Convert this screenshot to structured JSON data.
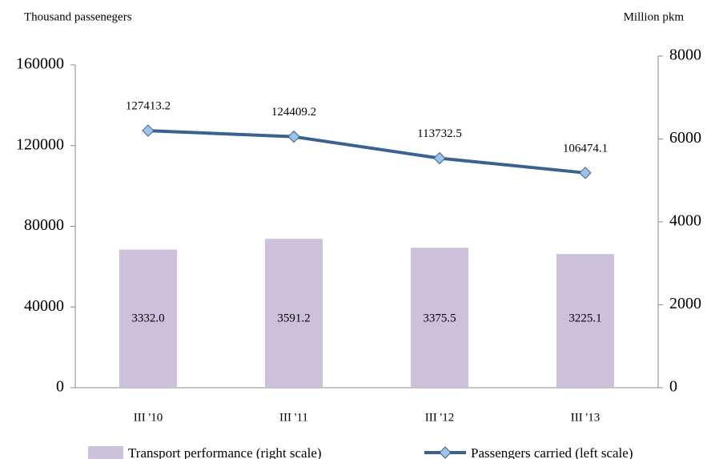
{
  "chart_data": {
    "type": "combo",
    "y_label": "Thousand passenegers",
    "y2_label": "Million pkm",
    "categories": [
      "III '10",
      "III '11",
      "III '12",
      "III '13"
    ],
    "series": [
      {
        "name": "Transport performance (right scale)",
        "type": "bar",
        "axis": "y2",
        "color": "#ccc0da",
        "values": [
          3332.0,
          3591.2,
          3375.5,
          3225.1
        ],
        "value_labels": [
          "3332.0",
          "3591.2",
          "3375.5",
          "3225.1"
        ]
      },
      {
        "name": "Passengers carried (left scale)",
        "type": "line",
        "axis": "y",
        "color": "#3a6291",
        "marker_color": "#9dc3e6",
        "values": [
          127413.2,
          124409.2,
          113732.5,
          106474.1
        ]
      }
    ],
    "ylim": [
      0,
      160000
    ],
    "yticks": [
      0,
      40000,
      80000,
      120000,
      160000
    ],
    "y2lim": [
      0,
      8000
    ],
    "y2ticks": [
      0,
      2000,
      4000,
      6000,
      8000
    ],
    "legend": "bottom"
  }
}
